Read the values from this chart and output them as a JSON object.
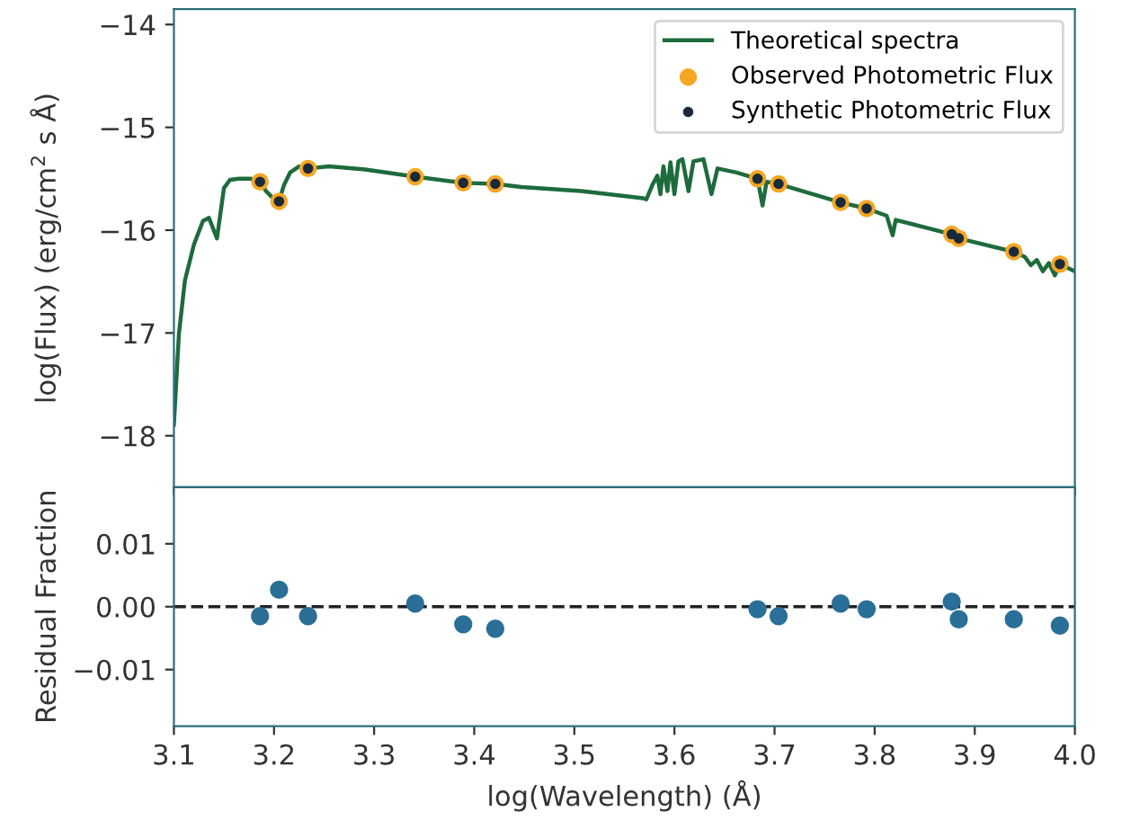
{
  "chart_data": [
    {
      "type": "line",
      "ylabel": "log(Flux) (erg/cm$^{2}$ s Å)",
      "xlim": [
        3.1,
        4.0
      ],
      "ylim": [
        -18.5,
        -13.85
      ],
      "yticks": [
        {
          "value": -14,
          "label": "−14"
        },
        {
          "value": -15,
          "label": "−15"
        },
        {
          "value": -16,
          "label": "−16"
        },
        {
          "value": -17,
          "label": "−17"
        },
        {
          "value": -18,
          "label": "−18"
        }
      ],
      "tick_labels": "y",
      "legend": "top right",
      "grid": false,
      "series": [
        {
          "name": "Theoretical spectra",
          "type": "line",
          "color": "#1e6b3c",
          "marker": "none",
          "line_style": "solid",
          "x": [
            3.1,
            3.105,
            3.111,
            3.12,
            3.129,
            3.135,
            3.143,
            3.15,
            3.156,
            3.165,
            3.177,
            3.186,
            3.192,
            3.198,
            3.205,
            3.21,
            3.216,
            3.225,
            3.234,
            3.255,
            3.291,
            3.341,
            3.389,
            3.421,
            3.447,
            3.507,
            3.569,
            3.572,
            3.578,
            3.583,
            3.586,
            3.589,
            3.593,
            3.596,
            3.6,
            3.604,
            3.608,
            3.614,
            3.619,
            3.629,
            3.637,
            3.643,
            3.662,
            3.683,
            3.688,
            3.692,
            3.704,
            3.766,
            3.792,
            3.812,
            3.818,
            3.821,
            3.877,
            3.884,
            3.939,
            3.95,
            3.956,
            3.962,
            3.968,
            3.974,
            3.98,
            3.985,
            4.0
          ],
          "values": [
            -17.89,
            -17.01,
            -16.49,
            -16.14,
            -15.91,
            -15.88,
            -16.08,
            -15.59,
            -15.51,
            -15.5,
            -15.5,
            -15.53,
            -15.62,
            -15.68,
            -15.72,
            -15.56,
            -15.44,
            -15.38,
            -15.4,
            -15.38,
            -15.41,
            -15.48,
            -15.54,
            -15.55,
            -15.58,
            -15.62,
            -15.69,
            -15.7,
            -15.56,
            -15.47,
            -15.65,
            -15.38,
            -15.62,
            -15.34,
            -15.65,
            -15.33,
            -15.31,
            -15.62,
            -15.33,
            -15.31,
            -15.65,
            -15.4,
            -15.44,
            -15.5,
            -15.76,
            -15.53,
            -15.55,
            -15.73,
            -15.79,
            -15.86,
            -16.05,
            -15.9,
            -16.04,
            -16.08,
            -16.21,
            -16.26,
            -16.34,
            -16.29,
            -16.4,
            -16.32,
            -16.44,
            -16.33,
            -16.4
          ]
        },
        {
          "name": "Observed Photometric Flux",
          "type": "scatter",
          "color": "#f5a623",
          "marker": "circle",
          "x": [
            3.186,
            3.205,
            3.234,
            3.341,
            3.389,
            3.421,
            3.683,
            3.704,
            3.766,
            3.792,
            3.877,
            3.884,
            3.939,
            3.985
          ],
          "values": [
            -15.53,
            -15.72,
            -15.4,
            -15.48,
            -15.54,
            -15.55,
            -15.5,
            -15.55,
            -15.73,
            -15.79,
            -16.04,
            -16.08,
            -16.21,
            -16.33
          ]
        },
        {
          "name": "Synthetic Photometric Flux",
          "type": "scatter",
          "color": "#1a2a3a",
          "marker": "circle",
          "x": [
            3.186,
            3.205,
            3.234,
            3.341,
            3.389,
            3.421,
            3.683,
            3.704,
            3.766,
            3.792,
            3.877,
            3.884,
            3.939,
            3.985
          ],
          "values": [
            -15.53,
            -15.72,
            -15.4,
            -15.48,
            -15.54,
            -15.55,
            -15.5,
            -15.55,
            -15.73,
            -15.79,
            -16.04,
            -16.08,
            -16.21,
            -16.33
          ]
        }
      ]
    },
    {
      "type": "scatter",
      "xlabel": "log(Wavelength) (Å)",
      "ylabel": "Residual Fraction",
      "xlim": [
        3.1,
        4.0
      ],
      "xticks": [
        {
          "value": 3.1,
          "label": "3.1"
        },
        {
          "value": 3.2,
          "label": "3.2"
        },
        {
          "value": 3.3,
          "label": "3.3"
        },
        {
          "value": 3.4,
          "label": "3.4"
        },
        {
          "value": 3.5,
          "label": "3.5"
        },
        {
          "value": 3.6,
          "label": "3.6"
        },
        {
          "value": 3.7,
          "label": "3.7"
        },
        {
          "value": 3.8,
          "label": "3.8"
        },
        {
          "value": 3.9,
          "label": "3.9"
        },
        {
          "value": 4.0,
          "label": "4.0"
        }
      ],
      "ylim": [
        -0.019,
        0.019
      ],
      "yticks": [
        {
          "value": 0.01,
          "label": "0.01"
        },
        {
          "value": 0.0,
          "label": "0.00"
        },
        {
          "value": -0.01,
          "label": "−0.01"
        }
      ],
      "grid": false,
      "marker": "circle",
      "ref_lines": [
        {
          "axis": "y",
          "value": 0,
          "color": "#222222",
          "line_style": "dashed"
        }
      ],
      "series": [
        {
          "color": "#2a6f97",
          "x": [
            3.186,
            3.205,
            3.234,
            3.341,
            3.389,
            3.421,
            3.683,
            3.704,
            3.766,
            3.792,
            3.877,
            3.884,
            3.939,
            3.985
          ],
          "values": [
            -0.0015,
            0.0027,
            -0.0015,
            0.0005,
            -0.0028,
            -0.0035,
            -0.0004,
            -0.0015,
            0.0005,
            -0.0004,
            0.0008,
            -0.002,
            -0.002,
            -0.003
          ]
        }
      ]
    }
  ]
}
